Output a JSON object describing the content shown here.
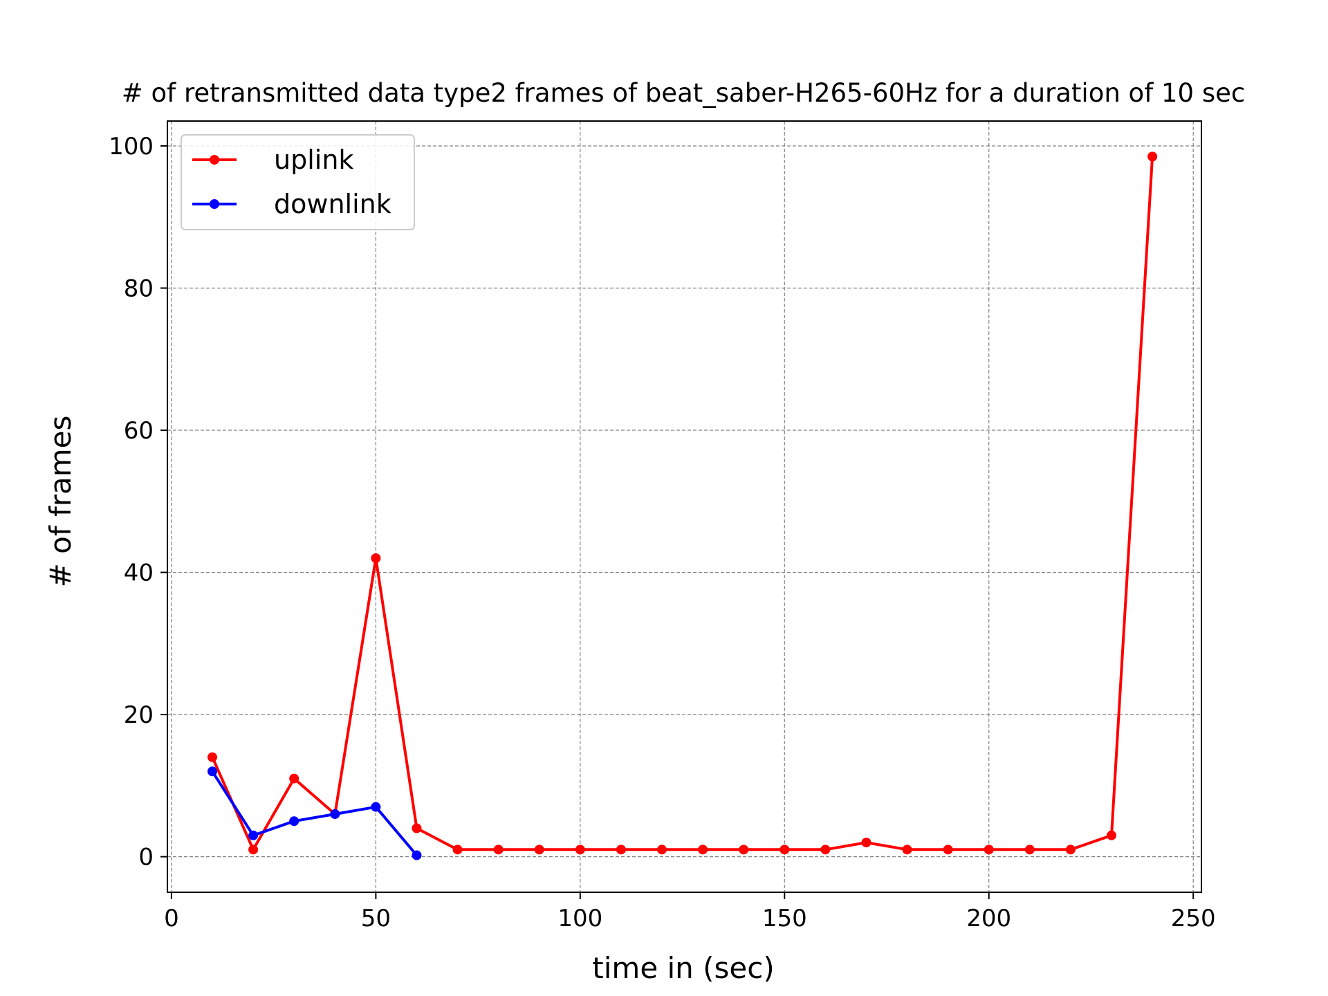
{
  "chart_data": {
    "type": "line",
    "title": "# of retransmitted data type2 frames of beat_saber-H265-60Hz for a duration of 10 sec",
    "xlabel": "time in (sec)",
    "ylabel": "# of frames",
    "xlim": [
      -1,
      252
    ],
    "ylim": [
      -5,
      103.5
    ],
    "xticks": [
      0,
      50,
      100,
      150,
      200,
      250
    ],
    "yticks": [
      0,
      20,
      40,
      60,
      80,
      100
    ],
    "grid": true,
    "legend_position": "upper-left",
    "series": [
      {
        "name": "uplink",
        "color": "#ff0000",
        "x": [
          10,
          20,
          30,
          40,
          50,
          60,
          70,
          80,
          90,
          100,
          110,
          120,
          130,
          140,
          150,
          160,
          170,
          180,
          190,
          200,
          210,
          220,
          230,
          240
        ],
        "y": [
          14,
          1,
          11,
          6,
          42,
          4,
          1,
          1,
          1,
          1,
          1,
          1,
          1,
          1,
          1,
          1,
          2,
          1,
          1,
          1,
          1,
          1,
          3,
          98.5
        ]
      },
      {
        "name": "downlink",
        "color": "#0000ff",
        "x": [
          10,
          20,
          30,
          40,
          50,
          60
        ],
        "y": [
          12,
          3,
          5,
          6,
          7,
          0.2
        ]
      }
    ]
  }
}
